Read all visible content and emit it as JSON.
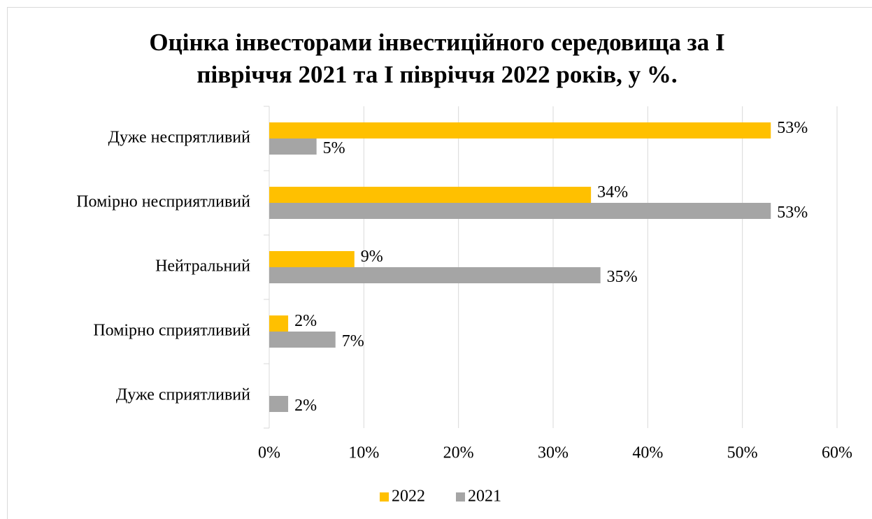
{
  "chart_data": {
    "type": "hbar",
    "title": "Оцінка інвесторами інвестиційного середовища за І півріччя 2021 та І півріччя 2022 років, у %.",
    "categories": [
      "Дуже неспрятливий",
      "Помірно несприятливий",
      "Нейтральний",
      "Помірно сприятливий",
      "Дуже сприятливий"
    ],
    "series": [
      {
        "name": "2022",
        "color": "#ffc000",
        "values": [
          53,
          34,
          9,
          2,
          null
        ],
        "value_labels": [
          "53%",
          "34%",
          "9%",
          "2%",
          null
        ]
      },
      {
        "name": "2021",
        "color": "#a5a5a5",
        "values": [
          5,
          53,
          35,
          7,
          2
        ],
        "value_labels": [
          "5%",
          "53%",
          "35%",
          "7%",
          "2%"
        ]
      }
    ],
    "xlim": [
      0,
      60
    ],
    "xticks": [
      {
        "value": 0,
        "label": "0%"
      },
      {
        "value": 10,
        "label": "10%"
      },
      {
        "value": 20,
        "label": "20%"
      },
      {
        "value": 30,
        "label": "30%"
      },
      {
        "value": 40,
        "label": "40%"
      },
      {
        "value": 50,
        "label": "50%"
      },
      {
        "value": 60,
        "label": "60%"
      }
    ],
    "grid": true,
    "legend": "bottom"
  }
}
